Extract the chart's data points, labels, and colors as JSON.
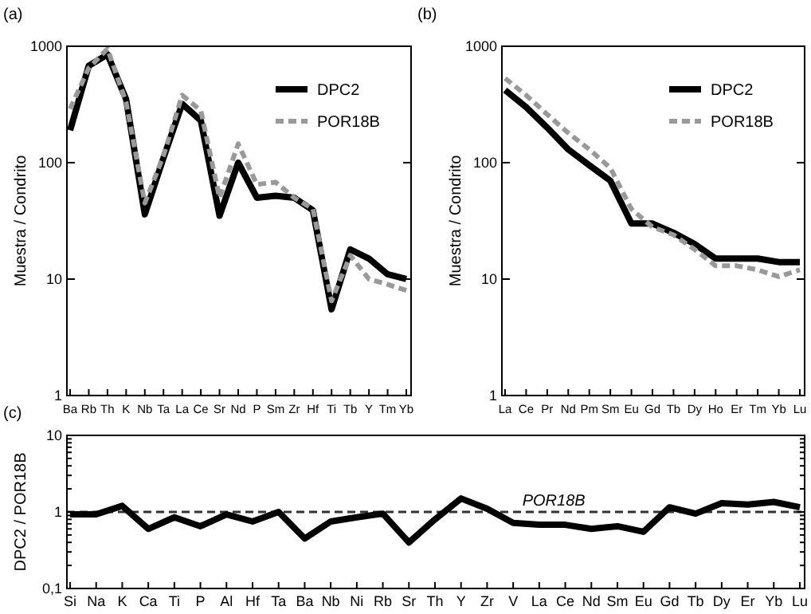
{
  "chart_data": [
    {
      "type": "line",
      "title": "(a)",
      "ylabel": "Muestra / Condrito",
      "log": "y",
      "ylim": [
        1,
        1000
      ],
      "yticks": [
        1,
        10,
        100,
        1000
      ],
      "legend": "top right",
      "grid": false,
      "categories": [
        "Ba",
        "Rb",
        "Th",
        "K",
        "Nb",
        "Ta",
        "La",
        "Ce",
        "Sr",
        "Nd",
        "P",
        "Sm",
        "Zr",
        "Hf",
        "Ti",
        "Tb",
        "Y",
        "Tm",
        "Yb"
      ],
      "series": [
        {
          "name": "DPC2",
          "color": "#000000",
          "line_style": "solid",
          "values": [
            190,
            680,
            850,
            350,
            36,
            110,
            320,
            230,
            35,
            100,
            50,
            52,
            50,
            39,
            5.5,
            18,
            15,
            11,
            10
          ]
        },
        {
          "name": "POR18B",
          "color": "#999999",
          "line_style": "dashed",
          "values": [
            290,
            650,
            950,
            330,
            45,
            115,
            380,
            280,
            50,
            145,
            65,
            68,
            50,
            40,
            6.5,
            16,
            10,
            9,
            8
          ]
        }
      ]
    },
    {
      "type": "line",
      "title": "(b)",
      "ylabel": "Muestra / Condrito",
      "log": "y",
      "ylim": [
        1,
        1000
      ],
      "yticks": [
        1,
        10,
        100,
        1000
      ],
      "legend": "top right",
      "grid": false,
      "categories": [
        "La",
        "Ce",
        "Pr",
        "Nd",
        "Pm",
        "Sm",
        "Eu",
        "Gd",
        "Tb",
        "Dy",
        "Ho",
        "Er",
        "Tm",
        "Yb",
        "Lu"
      ],
      "series": [
        {
          "name": "DPC2",
          "color": "#000000",
          "line_style": "solid",
          "values": [
            420,
            300,
            200,
            130,
            95,
            70,
            30,
            30,
            25,
            20,
            15,
            15,
            15,
            14,
            14
          ]
        },
        {
          "name": "POR18B",
          "color": "#999999",
          "line_style": "dashed",
          "values": [
            530,
            380,
            260,
            180,
            130,
            90,
            40,
            28,
            24,
            18,
            13,
            13,
            12,
            10.5,
            12
          ]
        }
      ]
    },
    {
      "type": "line",
      "title": "(c)",
      "ylabel": "DPC2 / POR18B",
      "log": "y",
      "ylim": [
        0.1,
        10
      ],
      "grid": false,
      "yticks": [
        {
          "value": 0.1,
          "label": "0,1"
        },
        {
          "value": 0.2,
          "label": null
        },
        {
          "value": 0.3,
          "label": null
        },
        {
          "value": 0.4,
          "label": null
        },
        {
          "value": 0.5,
          "label": null
        },
        {
          "value": 0.6,
          "label": null
        },
        {
          "value": 0.7,
          "label": null
        },
        {
          "value": 0.8,
          "label": null
        },
        {
          "value": 0.9,
          "label": null
        },
        {
          "value": 1,
          "label": "1"
        },
        {
          "value": 2,
          "label": null
        },
        {
          "value": 3,
          "label": null
        },
        {
          "value": 4,
          "label": null
        },
        {
          "value": 5,
          "label": null
        },
        {
          "value": 6,
          "label": null
        },
        {
          "value": 7,
          "label": null
        },
        {
          "value": 8,
          "label": null
        },
        {
          "value": 9,
          "label": null
        },
        {
          "value": 10,
          "label": "10"
        }
      ],
      "categories": [
        "Si",
        "Na",
        "K",
        "Ca",
        "Ti",
        "P",
        "Al",
        "Hf",
        "Ta",
        "Ba",
        "Nb",
        "Ni",
        "Rb",
        "Sr",
        "Th",
        "Y",
        "Zr",
        "V",
        "La",
        "Ce",
        "Nd",
        "Sm",
        "Eu",
        "Gd",
        "Tb",
        "Dy",
        "Er",
        "Yb",
        "Lu"
      ],
      "ref_lines": [
        {
          "axis": "y",
          "value": 1,
          "label": "POR18B",
          "color": "#333333",
          "line_style": "dashed"
        }
      ],
      "series": [
        {
          "color": "#000000",
          "line_style": "solid",
          "values": [
            0.93,
            0.93,
            1.2,
            0.6,
            0.85,
            0.65,
            0.93,
            0.75,
            1.0,
            0.45,
            0.75,
            0.85,
            0.95,
            0.4,
            0.8,
            1.5,
            1.1,
            0.72,
            0.68,
            0.68,
            0.6,
            0.65,
            0.55,
            1.15,
            0.95,
            1.3,
            1.25,
            1.35,
            1.15
          ]
        }
      ]
    }
  ]
}
